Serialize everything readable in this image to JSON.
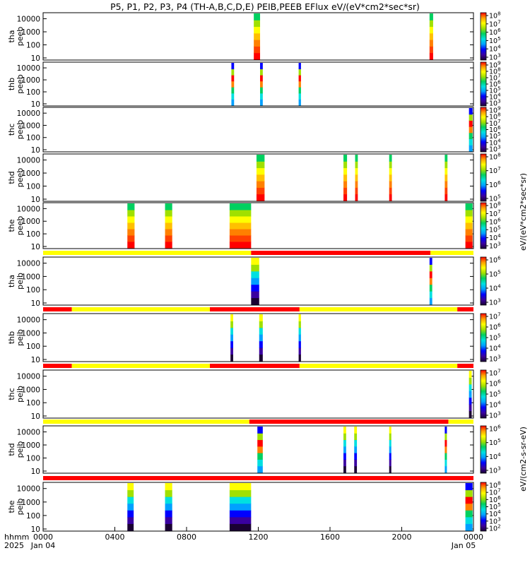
{
  "title": "P5, P1, P2, P3, P4 (TH-A,B,C,D,E) PEIB,PEEB EFlux eV/(eV*cm2*sec*sr)",
  "footer": {
    "row1_label": "hhmm",
    "row2_label": "2025",
    "start_date": "Jan 04",
    "end_date": "Jan 05",
    "time_ticks": [
      "0000",
      "0400",
      "0800",
      "1200",
      "1600",
      "2000",
      "0000"
    ]
  },
  "colorbar_unit_upper": "eV/(eV*cm2*sec*sr)",
  "colorbar_unit_lower": "eV/(cm2-s-sr-eV)",
  "chart_data": {
    "type": "heatmap",
    "x_range_hours": [
      0,
      24
    ],
    "y_scale": "log",
    "y_tick_labels": [
      "10",
      "100",
      "1000",
      "10000"
    ],
    "panels": [
      {
        "name": "tha peeb",
        "probe": "tha",
        "instrument": "peeb",
        "cbar_min_exp": 3,
        "cbar_max_exp": 8,
        "segments": [
          {
            "start": 11.75,
            "end": 12.1,
            "level": "high"
          },
          {
            "start": 21.55,
            "end": 21.75,
            "level": "high"
          }
        ]
      },
      {
        "name": "thb peeb",
        "probe": "thb",
        "instrument": "peeb",
        "cbar_min_exp": 3,
        "cbar_max_exp": 9,
        "segments": [
          {
            "start": 10.5,
            "end": 10.65,
            "level": "mid"
          },
          {
            "start": 12.1,
            "end": 12.25,
            "level": "mid"
          },
          {
            "start": 14.25,
            "end": 14.38,
            "level": "mid"
          }
        ]
      },
      {
        "name": "thc peeb",
        "probe": "thc",
        "instrument": "peeb",
        "cbar_min_exp": 3,
        "cbar_max_exp": 9,
        "segments": [
          {
            "start": 23.75,
            "end": 23.95,
            "level": "mid"
          }
        ]
      },
      {
        "name": "thd peeb",
        "probe": "thd",
        "instrument": "peeb",
        "cbar_min_exp": 5,
        "cbar_max_exp": 8,
        "segments": [
          {
            "start": 11.9,
            "end": 12.35,
            "level": "high"
          },
          {
            "start": 16.75,
            "end": 16.95,
            "level": "high"
          },
          {
            "start": 17.4,
            "end": 17.55,
            "level": "high"
          },
          {
            "start": 19.3,
            "end": 19.45,
            "level": "high"
          },
          {
            "start": 22.4,
            "end": 22.55,
            "level": "high"
          }
        ]
      },
      {
        "name": "the peeb",
        "probe": "the",
        "instrument": "peeb",
        "cbar_min_exp": 3,
        "cbar_max_exp": 8,
        "segments": [
          {
            "start": 4.7,
            "end": 5.1,
            "level": "high"
          },
          {
            "start": 6.8,
            "end": 7.2,
            "level": "high"
          },
          {
            "start": 10.4,
            "end": 11.6,
            "level": "high"
          },
          {
            "start": 23.55,
            "end": 23.95,
            "level": "high"
          }
        ]
      },
      {
        "name": "tha peib",
        "probe": "tha",
        "instrument": "peib",
        "cbar_min_exp": 3,
        "cbar_max_exp": 6,
        "segments": [
          {
            "start": 11.6,
            "end": 12.05,
            "level": "low"
          },
          {
            "start": 21.55,
            "end": 21.7,
            "level": "mid"
          }
        ]
      },
      {
        "name": "thb peib",
        "probe": "thb",
        "instrument": "peib",
        "cbar_min_exp": 3,
        "cbar_max_exp": 7,
        "segments": [
          {
            "start": 10.45,
            "end": 10.6,
            "level": "low"
          },
          {
            "start": 12.05,
            "end": 12.25,
            "level": "low"
          },
          {
            "start": 14.25,
            "end": 14.38,
            "level": "low"
          }
        ]
      },
      {
        "name": "thc peib",
        "probe": "thc",
        "instrument": "peib",
        "cbar_min_exp": 3,
        "cbar_max_exp": 7,
        "segments": [
          {
            "start": 23.75,
            "end": 23.9,
            "level": "low"
          }
        ]
      },
      {
        "name": "thd peib",
        "probe": "thd",
        "instrument": "peib",
        "cbar_min_exp": 3,
        "cbar_max_exp": 6,
        "segments": [
          {
            "start": 11.95,
            "end": 12.25,
            "level": "mid"
          },
          {
            "start": 16.75,
            "end": 16.9,
            "level": "low"
          },
          {
            "start": 17.35,
            "end": 17.5,
            "level": "low"
          },
          {
            "start": 19.3,
            "end": 19.4,
            "level": "low"
          },
          {
            "start": 22.4,
            "end": 22.5,
            "level": "mid"
          }
        ]
      },
      {
        "name": "the peib",
        "probe": "the",
        "instrument": "peib",
        "cbar_min_exp": 2,
        "cbar_max_exp": 8,
        "segments": [
          {
            "start": 4.7,
            "end": 5.05,
            "level": "low"
          },
          {
            "start": 6.8,
            "end": 7.2,
            "level": "low"
          },
          {
            "start": 10.4,
            "end": 11.6,
            "level": "low"
          },
          {
            "start": 23.55,
            "end": 23.95,
            "level": "mid"
          }
        ]
      }
    ],
    "mode_bars": [
      {
        "after_panel": 4,
        "segments": [
          {
            "start": 0,
            "end": 11.6,
            "color": "#ffff00"
          },
          {
            "start": 11.6,
            "end": 21.6,
            "color": "#ff0000"
          },
          {
            "start": 21.6,
            "end": 24,
            "color": "#ffff00"
          }
        ]
      },
      {
        "after_panel": 5,
        "segments": [
          {
            "start": 0,
            "end": 1.6,
            "color": "#ff0000"
          },
          {
            "start": 1.6,
            "end": 9.3,
            "color": "#ffff00"
          },
          {
            "start": 9.3,
            "end": 14.3,
            "color": "#ff0000"
          },
          {
            "start": 14.3,
            "end": 23.1,
            "color": "#ffff00"
          },
          {
            "start": 23.1,
            "end": 24,
            "color": "#ff0000"
          }
        ]
      },
      {
        "after_panel": 6,
        "segments": [
          {
            "start": 0,
            "end": 1.6,
            "color": "#ff0000"
          },
          {
            "start": 1.6,
            "end": 9.3,
            "color": "#ffff00"
          },
          {
            "start": 9.3,
            "end": 14.3,
            "color": "#ff0000"
          },
          {
            "start": 14.3,
            "end": 23.1,
            "color": "#ffff00"
          },
          {
            "start": 23.1,
            "end": 24,
            "color": "#ff0000"
          }
        ]
      },
      {
        "after_panel": 7,
        "segments": [
          {
            "start": 0,
            "end": 11.5,
            "color": "#ffff00"
          },
          {
            "start": 11.5,
            "end": 22.6,
            "color": "#ff0000"
          },
          {
            "start": 22.6,
            "end": 24,
            "color": "#ffff00"
          }
        ]
      },
      {
        "after_panel": 8,
        "segments": [
          {
            "start": 0,
            "end": 24,
            "color": "#ff0000"
          }
        ]
      }
    ],
    "colormap": [
      "#1a0033",
      "#3a00a0",
      "#0000ff",
      "#00a0ff",
      "#00e0e0",
      "#00d060",
      "#a0e000",
      "#ffff00",
      "#ffa000",
      "#ff0000"
    ]
  }
}
